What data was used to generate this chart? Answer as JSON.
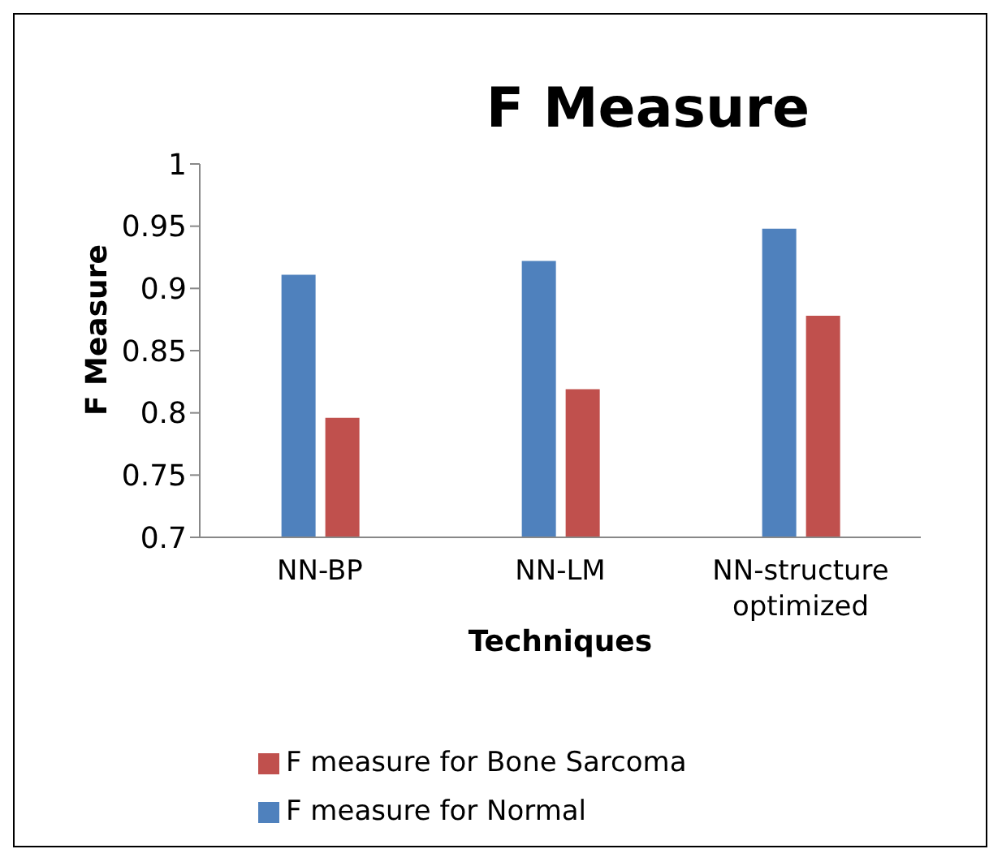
{
  "chart_data": {
    "type": "bar",
    "title": "F Measure",
    "xlabel": "Techniques",
    "ylabel": "F Measure",
    "categories": [
      "NN-BP",
      "NN-LM",
      "NN-structure optimized"
    ],
    "series": [
      {
        "name": "F measure for Normal",
        "color": "#4f81bd",
        "values": [
          0.911,
          0.922,
          0.948
        ]
      },
      {
        "name": "F measure for Bone Sarcoma",
        "color": "#c0504d",
        "values": [
          0.796,
          0.819,
          0.878
        ]
      }
    ],
    "ylim": [
      0.7,
      1
    ],
    "yticks": [
      0.7,
      0.75,
      0.8,
      0.85,
      0.9,
      0.95,
      1
    ],
    "grid": false,
    "legend": "bottom"
  }
}
